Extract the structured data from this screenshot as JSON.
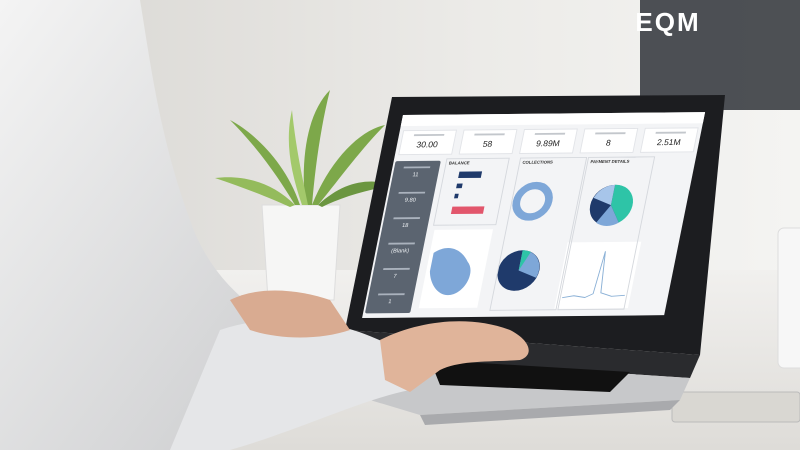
{
  "logo": {
    "text": "EQM"
  },
  "dashboard": {
    "kpis": [
      "30.00",
      "58",
      "9.89M",
      "8",
      "2.51M"
    ],
    "sidebar": [
      "11",
      "9.80",
      "18",
      "(Blank)",
      "7",
      "1"
    ],
    "panels": [
      "BALANCE",
      "COLLECTIONS",
      "PAYMENT DETAILS"
    ]
  }
}
